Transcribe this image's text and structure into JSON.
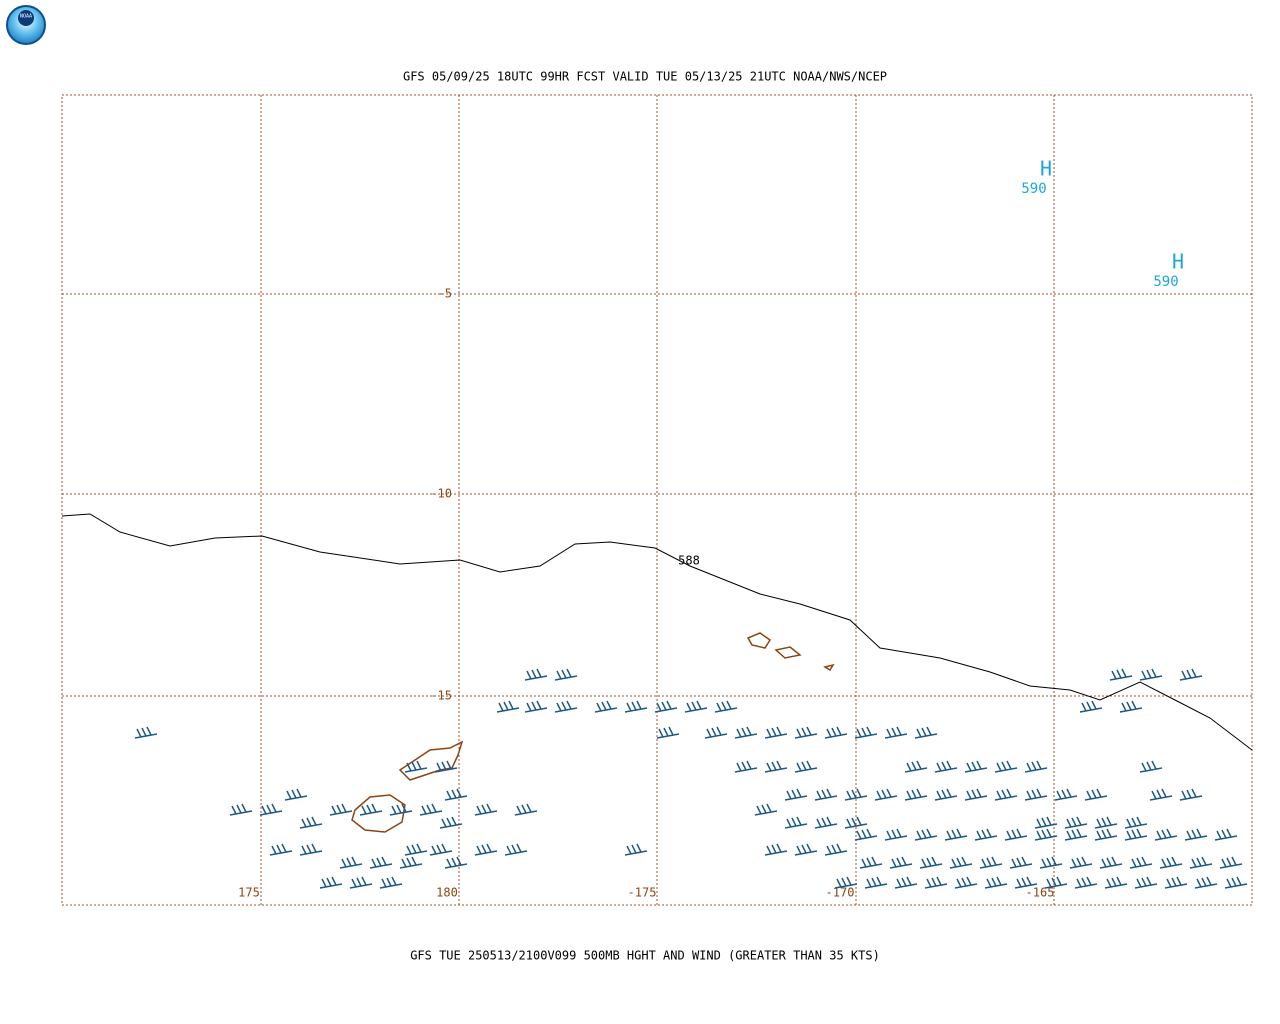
{
  "logo": "NOAA",
  "header": {
    "title": "GFS 05/09/25 18UTC 99HR FCST VALID TUE 05/13/25 21UTC NOAA/NWS/NCEP"
  },
  "footer": {
    "caption": "GFS TUE 250513/2100V099 500MB HGHT AND WIND (GREATER THAN 35 KTS)"
  },
  "map": {
    "latitude_labels": [
      "-5",
      "-10",
      "-15"
    ],
    "longitude_labels": [
      "175",
      "180",
      "-175",
      "-170",
      "-165"
    ],
    "contour_label": "588",
    "highs": [
      {
        "symbol": "H",
        "label": "590"
      },
      {
        "symbol": "H",
        "label": "590"
      }
    ]
  }
}
